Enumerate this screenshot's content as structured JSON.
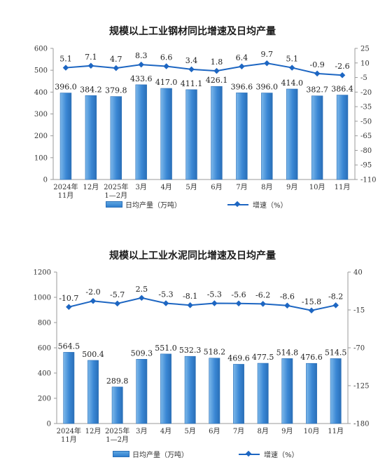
{
  "chart_data": [
    {
      "type": "bar+line",
      "title": "规模以上工业钢材同比增速及日均产量",
      "categories": [
        [
          "2024年",
          "11月"
        ],
        [
          "12月"
        ],
        [
          "2025年",
          "1—2月"
        ],
        [
          "3月"
        ],
        [
          "4月"
        ],
        [
          "5月"
        ],
        [
          "6月"
        ],
        [
          "7月"
        ],
        [
          "8月"
        ],
        [
          "9月"
        ],
        [
          "10月"
        ],
        [
          "11月"
        ]
      ],
      "series": [
        {
          "name": "日均产量（万吨）",
          "type": "bar",
          "axis": "left",
          "color": "#3a87d4",
          "values": [
            396.0,
            384.2,
            379.8,
            433.6,
            417.0,
            411.1,
            426.1,
            396.6,
            396.0,
            414.0,
            382.7,
            386.4
          ],
          "labels": [
            "396.0",
            "384.2",
            "379.8",
            "433.6",
            "417.0",
            "411.1",
            "426.1",
            "396.6",
            "396.0",
            "414.0",
            "382.7",
            "386.4"
          ]
        },
        {
          "name": "增速（%）",
          "type": "line",
          "axis": "right",
          "color": "#1d66c2",
          "values": [
            5.1,
            7.1,
            4.7,
            8.3,
            6.6,
            3.4,
            1.8,
            6.4,
            9.7,
            5.1,
            -0.9,
            -2.6
          ],
          "labels": [
            "5.1",
            "7.1",
            "4.7",
            "8.3",
            "6.6",
            "3.4",
            "1.8",
            "6.4",
            "9.7",
            "5.1",
            "-0.9",
            "-2.6"
          ]
        }
      ],
      "left_axis": {
        "min": 0,
        "max": 600,
        "ticks": [
          "0",
          "100",
          "200",
          "300",
          "400",
          "500",
          "600"
        ]
      },
      "right_axis": {
        "min": -110,
        "max": 25,
        "ticks": [
          "25",
          "10",
          "-5",
          "-20",
          "-35",
          "-50",
          "-65",
          "-80",
          "-95",
          "-110"
        ],
        "tick_values": [
          25,
          10,
          -5,
          -20,
          -35,
          -50,
          -65,
          -80,
          -95,
          -110
        ]
      },
      "legend": {
        "bar_label": "日均产量（万吨）",
        "line_label": "增速（%）",
        "position": "bottom"
      }
    },
    {
      "type": "bar+line",
      "title": "规模以上工业水泥同比增速及日均产量",
      "categories": [
        [
          "2024年",
          "11月"
        ],
        [
          "12月"
        ],
        [
          "2025年",
          "1—2月"
        ],
        [
          "3月"
        ],
        [
          "4月"
        ],
        [
          "5月"
        ],
        [
          "6月"
        ],
        [
          "7月"
        ],
        [
          "8月"
        ],
        [
          "9月"
        ],
        [
          "10月"
        ],
        [
          "11月"
        ]
      ],
      "series": [
        {
          "name": "日均产量（万吨）",
          "type": "bar",
          "axis": "left",
          "color": "#3a87d4",
          "values": [
            564.5,
            500.4,
            289.8,
            509.3,
            551.0,
            532.3,
            518.2,
            469.6,
            477.5,
            514.8,
            476.6,
            514.5
          ],
          "labels": [
            "564.5",
            "500.4",
            "289.8",
            "509.3",
            "551.0",
            "532.3",
            "518.2",
            "469.6",
            "477.5",
            "514.8",
            "476.6",
            "514.5"
          ]
        },
        {
          "name": "增速（%）",
          "type": "line",
          "axis": "right",
          "color": "#1d66c2",
          "values": [
            -10.7,
            -2.0,
            -5.7,
            2.5,
            -5.3,
            -8.1,
            -5.3,
            -5.6,
            -6.2,
            -8.6,
            -15.8,
            -8.2
          ],
          "labels": [
            "-10.7",
            "-2.0",
            "-5.7",
            "2.5",
            "-5.3",
            "-8.1",
            "-5.3",
            "-5.6",
            "-6.2",
            "-8.6",
            "-15.8",
            "-8.2"
          ]
        }
      ],
      "left_axis": {
        "min": 0,
        "max": 1200,
        "ticks": [
          "0",
          "200",
          "400",
          "600",
          "800",
          "1000",
          "1200"
        ]
      },
      "right_axis": {
        "min": -180,
        "max": 40,
        "ticks": [
          "40",
          "-15",
          "-70",
          "-125",
          "-180"
        ],
        "tick_values": [
          40,
          -15,
          -70,
          -125,
          -180
        ]
      },
      "legend": {
        "bar_label": "日均产量（万吨）",
        "line_label": "增速（%）",
        "position": "bottom"
      }
    }
  ]
}
